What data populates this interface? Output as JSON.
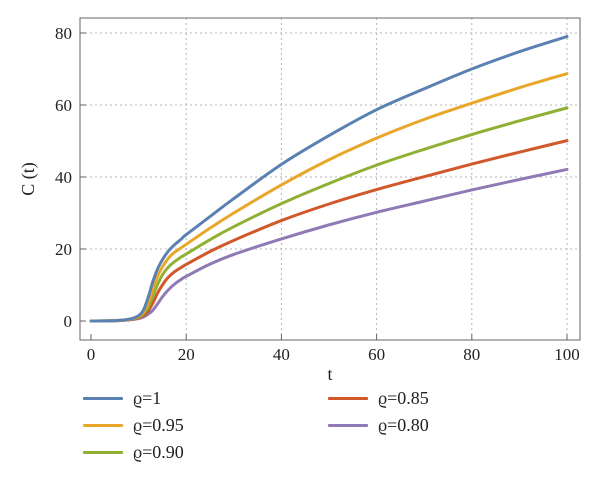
{
  "chart_data": {
    "type": "line",
    "xlabel": "t",
    "ylabel": "C (t)",
    "xlim": [
      0,
      100
    ],
    "ylim": [
      0,
      80
    ],
    "x_ticks": [
      0,
      20,
      40,
      60,
      80,
      100
    ],
    "y_ticks": [
      0,
      20,
      40,
      60,
      80
    ],
    "x_tick_labels": [
      "0",
      "20",
      "40",
      "60",
      "80",
      "100"
    ],
    "y_tick_labels": [
      "0",
      "20",
      "40",
      "60",
      "80"
    ],
    "grid": true,
    "legend_position": "bottom",
    "x": [
      0,
      5,
      8,
      10,
      11,
      12,
      13,
      14,
      15,
      16,
      17,
      18,
      19,
      20,
      25,
      30,
      40,
      50,
      60,
      70,
      80,
      90,
      100
    ],
    "series": [
      {
        "name": "ϱ=1",
        "color": "#5b80b2",
        "values": [
          0,
          0.1,
          0.5,
          1.5,
          3.0,
          6.5,
          11.0,
          14.5,
          17.0,
          19.0,
          20.5,
          21.7,
          22.8,
          24.0,
          29.0,
          34.0,
          43.5,
          51.5,
          58.7,
          64.5,
          70.0,
          74.8,
          79.0
        ]
      },
      {
        "name": "ϱ=0.95",
        "color": "#e8a72a",
        "values": [
          0,
          0.1,
          0.45,
          1.3,
          2.5,
          5.0,
          9.0,
          12.5,
          15.0,
          17.0,
          18.5,
          19.5,
          20.4,
          21.3,
          25.8,
          30.0,
          37.8,
          44.8,
          50.8,
          56.0,
          60.5,
          64.8,
          68.7
        ]
      },
      {
        "name": "ϱ=0.90",
        "color": "#8fb032",
        "values": [
          0,
          0.1,
          0.4,
          1.1,
          2.0,
          3.8,
          7.0,
          10.2,
          12.8,
          14.6,
          15.9,
          16.9,
          17.8,
          18.6,
          22.6,
          26.2,
          32.6,
          38.2,
          43.3,
          47.7,
          51.8,
          55.6,
          59.2
        ]
      },
      {
        "name": "ϱ=0.85",
        "color": "#d0582a",
        "values": [
          0,
          0.1,
          0.35,
          0.9,
          1.5,
          2.8,
          5.0,
          7.8,
          10.0,
          11.8,
          13.1,
          14.1,
          14.9,
          15.7,
          19.3,
          22.4,
          27.9,
          32.5,
          36.5,
          40.1,
          43.6,
          46.9,
          50.1
        ]
      },
      {
        "name": "ϱ=0.80",
        "color": "#8f7ab5",
        "values": [
          0,
          0.05,
          0.3,
          0.7,
          1.1,
          1.9,
          3.0,
          4.8,
          6.7,
          8.3,
          9.6,
          10.7,
          11.6,
          12.4,
          15.8,
          18.5,
          22.8,
          26.7,
          30.2,
          33.3,
          36.4,
          39.3,
          42.1
        ]
      }
    ]
  }
}
